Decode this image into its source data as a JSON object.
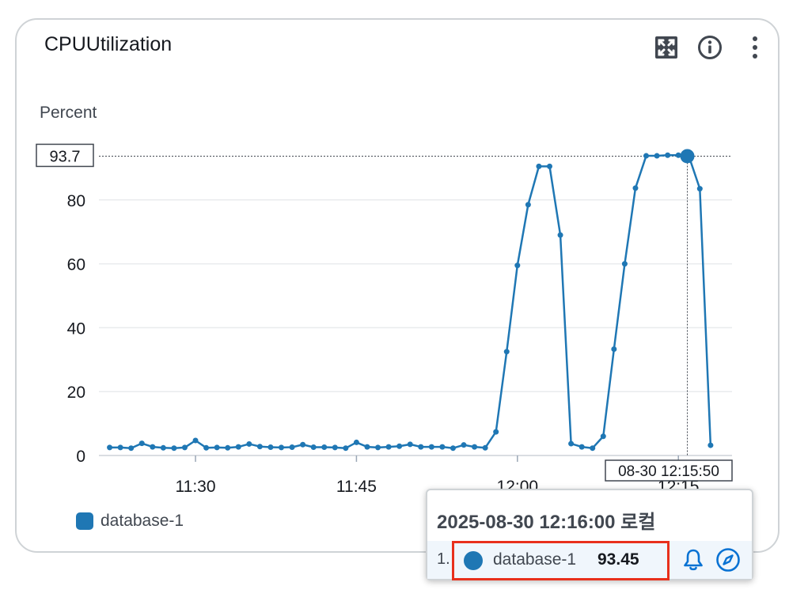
{
  "widget": {
    "title": "CPUUtilization",
    "icons": {
      "expand": "expand-icon",
      "info": "info-icon",
      "menu": "more-vertical-icon"
    }
  },
  "colors": {
    "series": "#1f77b4",
    "highlight": "#e8301c",
    "grid": "#e9ebed",
    "accent": "#0972d3"
  },
  "chart_data": {
    "type": "line",
    "ylabel": "Percent",
    "ylim": [
      0,
      100
    ],
    "yticks": [
      0,
      20,
      40,
      60,
      80
    ],
    "xticks": [
      {
        "label": "11:30",
        "t": "11:30"
      },
      {
        "label": "11:45",
        "t": "11:45"
      },
      {
        "label": "12:00",
        "t": "12:00"
      },
      {
        "label": "12:15",
        "t": "12:15"
      }
    ],
    "xlim": [
      "11:21",
      "12:20"
    ],
    "crosshair": {
      "y_label": "93.7",
      "y": 93.7,
      "x_label": "08-30 12:15:50",
      "x": "12:15:50"
    },
    "series": [
      {
        "name": "database-1",
        "x": [
          "11:22",
          "11:23",
          "11:24",
          "11:25",
          "11:26",
          "11:27",
          "11:28",
          "11:29",
          "11:30",
          "11:31",
          "11:32",
          "11:33",
          "11:34",
          "11:35",
          "11:36",
          "11:37",
          "11:38",
          "11:39",
          "11:40",
          "11:41",
          "11:42",
          "11:43",
          "11:44",
          "11:45",
          "11:46",
          "11:47",
          "11:48",
          "11:49",
          "11:50",
          "11:51",
          "11:52",
          "11:53",
          "11:54",
          "11:55",
          "11:56",
          "11:57",
          "11:58",
          "11:59",
          "12:00",
          "12:01",
          "12:02",
          "12:03",
          "12:04",
          "12:05",
          "12:06",
          "12:07",
          "12:08",
          "12:09",
          "12:10",
          "12:11",
          "12:12",
          "12:13",
          "12:14",
          "12:15",
          "12:16",
          "12:17",
          "12:18"
        ],
        "values": [
          2.5,
          2.5,
          2.3,
          3.8,
          2.7,
          2.4,
          2.3,
          2.5,
          4.7,
          2.4,
          2.5,
          2.4,
          2.7,
          3.6,
          2.8,
          2.6,
          2.5,
          2.6,
          3.4,
          2.6,
          2.6,
          2.5,
          2.3,
          4.1,
          2.7,
          2.5,
          2.7,
          2.9,
          3.5,
          2.7,
          2.7,
          2.7,
          2.3,
          3.3,
          2.7,
          2.4,
          7.4,
          32.5,
          59.5,
          78.5,
          90.5,
          90.5,
          69,
          3.7,
          2.7,
          2.3,
          6,
          33.3,
          60,
          83.7,
          93.8,
          93.8,
          94,
          94,
          93.45,
          83.5,
          3.2
        ]
      }
    ]
  },
  "legend": [
    {
      "label": "database-1"
    }
  ],
  "tooltip": {
    "title": "2025-08-30 12:16:00 로컬",
    "rows": [
      {
        "rank": "1.",
        "name": "database-1",
        "value": "93.45"
      }
    ],
    "icons": {
      "alarm": "bell-icon",
      "explore": "compass-icon"
    }
  }
}
